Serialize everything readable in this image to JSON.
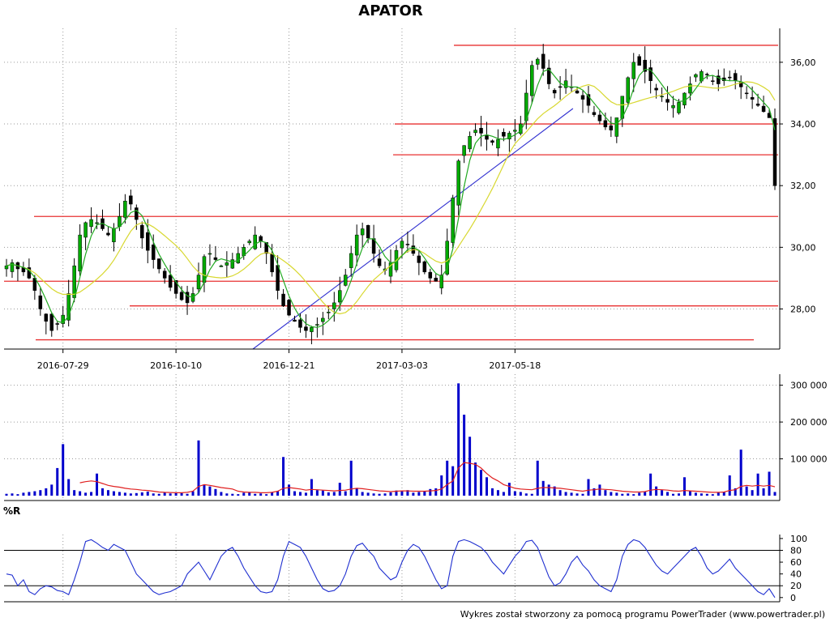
{
  "title": "APATOR",
  "footer": "Wykres został stworzony za pomocą programu PowerTrader (www.powertrader.pl)",
  "colors": {
    "up_candle": "#00aa00",
    "down_candle": "#000000",
    "ma_fast": "#22aa22",
    "ma_slow": "#d8d830",
    "levels": "#e83030",
    "trendline": "#3030d0",
    "volume": "#0000cc",
    "volume_ma": "#e02020",
    "williams": "#1f2fd0"
  },
  "chart_data": [
    {
      "type": "candlestick",
      "title": "APATOR",
      "x_tick_labels": [
        "2016-07-29",
        "2016-10-10",
        "2016-12-21",
        "2017-03-03",
        "2017-05-18"
      ],
      "y_tick_labels": [
        "28,00",
        "30,00",
        "32,00",
        "34,00",
        "36,00"
      ],
      "ylim": [
        26.7,
        37.1
      ],
      "grid": true,
      "close_approx": [
        29.4,
        29.5,
        29.3,
        29.2,
        29.0,
        28.6,
        28.0,
        27.6,
        27.3,
        27.5,
        27.8,
        28.5,
        29.4,
        30.4,
        30.8,
        30.9,
        30.8,
        30.6,
        30.4,
        30.6,
        31.0,
        31.5,
        31.4,
        30.9,
        30.3,
        29.9,
        29.6,
        29.3,
        29.0,
        28.7,
        28.5,
        28.3,
        28.2,
        28.5,
        29.1,
        29.7,
        29.8,
        29.6,
        29.4,
        29.5,
        29.6,
        29.8,
        30.0,
        30.2,
        30.4,
        30.2,
        29.8,
        29.2,
        28.6,
        28.1,
        27.8,
        27.6,
        27.4,
        27.3,
        27.4,
        27.5,
        27.7,
        27.9,
        28.2,
        28.6,
        29.1,
        29.8,
        30.4,
        30.6,
        30.3,
        29.8,
        29.4,
        29.3,
        29.5,
        29.9,
        30.2,
        30.1,
        29.8,
        29.5,
        29.2,
        29.0,
        28.9,
        29.1,
        30.2,
        31.6,
        32.8,
        33.3,
        33.6,
        33.8,
        33.7,
        33.5,
        33.4,
        33.5,
        33.6,
        33.7,
        33.8,
        34.0,
        35.0,
        35.9,
        36.1,
        35.8,
        35.3,
        35.0,
        35.2,
        35.4,
        35.2,
        35.0,
        34.8,
        34.6,
        34.3,
        34.1,
        33.9,
        33.8,
        34.2,
        34.9,
        35.5,
        36.0,
        35.9,
        35.7,
        35.4,
        35.1,
        34.9,
        34.7,
        34.6,
        34.7,
        35.0,
        35.3,
        35.6,
        35.7,
        35.6,
        35.4,
        35.3,
        35.4,
        35.5,
        35.4,
        35.2,
        35.0,
        34.8,
        34.6,
        34.4,
        34.2,
        32.0
      ],
      "support_resistance_levels": [
        36.55,
        34.0,
        33.0,
        31.0,
        28.9,
        28.1,
        27.0
      ],
      "trendline": {
        "start": [
          "2016-11-28",
          26.7
        ],
        "end": [
          "2017-06-26",
          34.5
        ]
      }
    },
    {
      "type": "bar",
      "series": [
        {
          "values": [
            5000,
            6000,
            4000,
            8000,
            10000,
            12000,
            15000,
            20000,
            30000,
            75000,
            140000,
            45000,
            15000,
            12000,
            8000,
            10000,
            60000,
            20000,
            15000,
            12000,
            10000,
            8000,
            6000,
            7000,
            9000,
            11000,
            6000,
            5000,
            8000,
            6000,
            9000,
            7000,
            5000,
            12000,
            150000,
            30000,
            25000,
            18000,
            10000,
            6000,
            5000,
            4000,
            8000,
            10000,
            5000,
            6000,
            4000,
            10000,
            12000,
            105000,
            30000,
            12000,
            10000,
            8000,
            45000,
            15000,
            14000,
            9000,
            10000,
            35000,
            12000,
            95000,
            20000,
            10000,
            8000,
            6000,
            5000,
            6000,
            9000,
            14000,
            12000,
            15000,
            8000,
            10000,
            12000,
            18000,
            20000,
            55000,
            95000,
            80000,
            305000,
            220000,
            160000,
            90000,
            70000,
            50000,
            20000,
            15000,
            10000,
            35000,
            12000,
            10000,
            6000,
            5000,
            95000,
            40000,
            30000,
            25000,
            15000,
            10000,
            8000,
            6000,
            5000,
            45000,
            20000,
            30000,
            15000,
            10000,
            8000,
            5000,
            6000,
            4000,
            8000,
            10000,
            60000,
            25000,
            15000,
            10000,
            5000,
            6000,
            50000,
            12000,
            8000,
            6000,
            5000,
            4000,
            8000,
            10000,
            55000,
            20000,
            125000,
            25000,
            15000,
            60000,
            20000,
            65000,
            10000
          ]
        },
        {
          "name": "",
          "values": [
            null,
            null,
            null,
            null,
            null,
            null,
            null,
            null,
            null,
            null,
            null,
            null,
            null,
            35000,
            38000,
            40000,
            38000,
            33000,
            28000,
            25000,
            23000,
            20000,
            18000,
            17000,
            15000,
            14000,
            12000,
            10000,
            9000,
            8500,
            8000,
            8000,
            9000,
            12000,
            25000,
            30000,
            28000,
            25000,
            22000,
            20000,
            18000,
            12000,
            10000,
            9000,
            9000,
            8000,
            8000,
            9000,
            12000,
            20000,
            22000,
            20000,
            18000,
            15000,
            17000,
            16000,
            15000,
            14000,
            13000,
            14000,
            15000,
            18000,
            20000,
            19000,
            17000,
            15000,
            13000,
            12000,
            11000,
            12000,
            13000,
            13000,
            12000,
            12000,
            12000,
            13000,
            14000,
            18000,
            30000,
            40000,
            75000,
            90000,
            88000,
            85000,
            75000,
            60000,
            48000,
            40000,
            30000,
            25000,
            20000,
            18000,
            17000,
            16000,
            20000,
            22000,
            22000,
            21000,
            20000,
            18000,
            16000,
            14000,
            12000,
            15000,
            16000,
            18000,
            17000,
            16000,
            14000,
            12000,
            11000,
            10000,
            10000,
            11000,
            15000,
            17000,
            16000,
            15000,
            13000,
            12000,
            14000,
            13000,
            12000,
            11000,
            10000,
            9000,
            9000,
            10000,
            14000,
            16000,
            25000,
            28000,
            26000,
            28000,
            26000,
            28000,
            24000
          ]
        }
      ],
      "y_tick_labels": [
        "100 000",
        "200 000",
        "300 000"
      ],
      "ylim": [
        0,
        330000
      ]
    },
    {
      "type": "line",
      "pane_label": "%R",
      "y_tick_labels": [
        "0",
        "20",
        "40",
        "60",
        "80",
        "100"
      ],
      "reference_lines": [
        20,
        80
      ],
      "ylim": [
        -3,
        104
      ],
      "series": [
        {
          "values": [
            40,
            38,
            20,
            30,
            10,
            5,
            15,
            20,
            18,
            12,
            10,
            5,
            30,
            60,
            95,
            98,
            92,
            85,
            80,
            90,
            85,
            80,
            60,
            40,
            30,
            20,
            10,
            5,
            8,
            10,
            15,
            20,
            40,
            50,
            60,
            45,
            30,
            50,
            70,
            80,
            85,
            70,
            50,
            35,
            20,
            10,
            8,
            10,
            30,
            70,
            95,
            90,
            85,
            70,
            50,
            30,
            15,
            10,
            12,
            20,
            40,
            70,
            88,
            92,
            80,
            70,
            50,
            40,
            30,
            35,
            60,
            80,
            90,
            85,
            70,
            50,
            30,
            15,
            20,
            70,
            95,
            98,
            95,
            90,
            85,
            75,
            60,
            50,
            40,
            55,
            70,
            80,
            95,
            97,
            85,
            60,
            35,
            20,
            25,
            40,
            60,
            70,
            55,
            45,
            30,
            20,
            15,
            10,
            30,
            70,
            90,
            98,
            95,
            85,
            70,
            55,
            45,
            40,
            50,
            60,
            70,
            80,
            85,
            70,
            50,
            40,
            45,
            55,
            65,
            50,
            40,
            30,
            20,
            10,
            5,
            15,
            0
          ]
        }
      ]
    }
  ]
}
